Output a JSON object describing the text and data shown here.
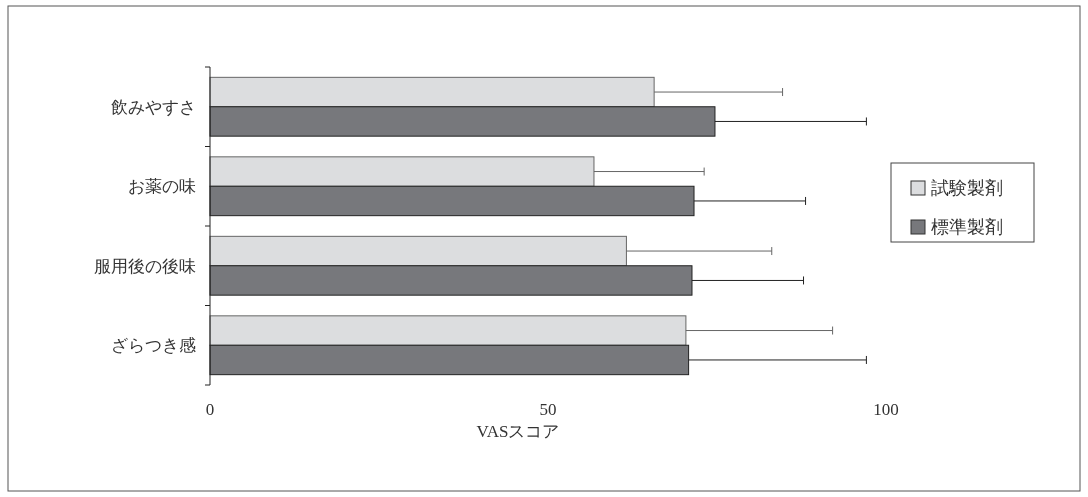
{
  "chart_data": {
    "type": "bar",
    "orientation": "horizontal",
    "xlabel": "VASスコア",
    "categories": [
      "飲みやすさ",
      "お薬の味",
      "服用後の後味",
      "ざらつき感"
    ],
    "series": [
      {
        "name": "試験製剤",
        "color": "#dcdddf",
        "values": [
          65.7,
          56.8,
          61.6,
          70.4
        ],
        "errors": [
          [
            65.7,
            84.7
          ],
          [
            56.8,
            73.1
          ],
          [
            61.6,
            83.1
          ],
          [
            70.4,
            92.1
          ]
        ]
      },
      {
        "name": "標準製剤",
        "color": "#77787c",
        "values": [
          74.7,
          71.6,
          71.3,
          70.8
        ],
        "errors": [
          [
            74.7,
            97.1
          ],
          [
            71.6,
            88.1
          ],
          [
            71.3,
            87.8
          ],
          [
            70.8,
            97.1
          ]
        ]
      }
    ],
    "xlim": [
      0,
      100
    ],
    "xticks": [
      0,
      50,
      100
    ],
    "legend": "right",
    "grid": false
  }
}
